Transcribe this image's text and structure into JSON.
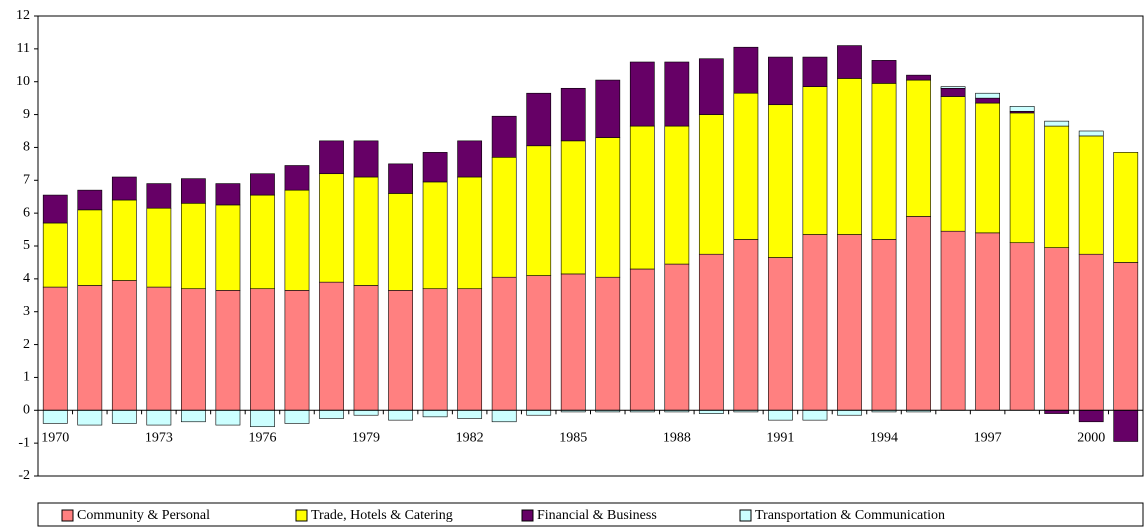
{
  "chart_data": {
    "type": "stacked-bar",
    "categories": [
      "1970",
      null,
      null,
      "1973",
      null,
      null,
      "1976",
      null,
      null,
      "1979",
      null,
      null,
      "1982",
      null,
      null,
      "1985",
      null,
      null,
      "1988",
      null,
      null,
      "1991",
      null,
      null,
      "1994",
      null,
      null,
      "1997",
      null,
      null,
      "2000",
      null
    ],
    "series": [
      {
        "name": "Community & Personal",
        "color": "#ff8080",
        "values": [
          3.75,
          3.8,
          3.95,
          3.75,
          3.7,
          3.65,
          3.7,
          3.65,
          3.9,
          3.8,
          3.65,
          3.7,
          3.7,
          4.05,
          4.1,
          4.15,
          4.05,
          4.3,
          4.45,
          4.75,
          5.2,
          4.65,
          5.35,
          5.35,
          5.2,
          5.9,
          5.45,
          5.4,
          5.1,
          4.95,
          4.75,
          4.5
        ]
      },
      {
        "name": "Trade, Hotels & Catering",
        "color": "#ffff00",
        "values": [
          1.95,
          2.3,
          2.45,
          2.4,
          2.6,
          2.6,
          2.85,
          3.05,
          3.3,
          3.3,
          2.95,
          3.25,
          3.4,
          3.65,
          3.95,
          4.05,
          4.25,
          4.35,
          4.2,
          4.25,
          4.45,
          4.65,
          4.5,
          4.75,
          4.75,
          4.15,
          4.1,
          3.95,
          3.95,
          3.7,
          3.6,
          3.35
        ]
      },
      {
        "name": "Financial & Business",
        "color": "#660066",
        "values": [
          0.85,
          0.6,
          0.7,
          0.75,
          0.75,
          0.65,
          0.65,
          0.75,
          1.0,
          1.1,
          0.9,
          0.9,
          1.1,
          1.25,
          1.6,
          1.6,
          1.75,
          1.95,
          1.95,
          1.7,
          1.4,
          1.45,
          0.9,
          1.0,
          0.7,
          0.15,
          0.25,
          0.15,
          0.05,
          -0.1,
          -0.35,
          -0.95
        ]
      },
      {
        "name": "Transportation & Communication",
        "color": "#ccffff",
        "values": [
          -0.4,
          -0.45,
          -0.4,
          -0.45,
          -0.35,
          -0.45,
          -0.5,
          -0.4,
          -0.25,
          -0.15,
          -0.3,
          -0.2,
          -0.25,
          -0.35,
          -0.15,
          -0.05,
          -0.05,
          -0.05,
          -0.05,
          -0.1,
          -0.05,
          -0.3,
          -0.3,
          -0.15,
          -0.05,
          -0.05,
          0.05,
          0.15,
          0.15,
          0.15,
          0.15,
          0
        ]
      }
    ],
    "ylim": [
      -2,
      12
    ],
    "yticks": [
      -2,
      -1,
      0,
      1,
      2,
      3,
      4,
      5,
      6,
      7,
      8,
      9,
      10,
      11,
      12
    ],
    "grid": false,
    "legend": "bottom"
  }
}
